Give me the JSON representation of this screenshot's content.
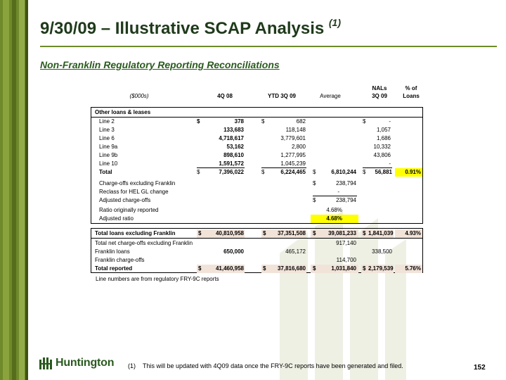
{
  "header": {
    "title": "9/30/09 – Illustrative SCAP Analysis",
    "title_sup": "(1)",
    "subtitle": "Non-Franklin Regulatory Reporting Reconciliations"
  },
  "columns": {
    "units": "($000s)",
    "c1": "4Q 08",
    "c2": "YTD 3Q 09",
    "c3": "Average",
    "c4_line1": "NALs",
    "c4_line2": "3Q 09",
    "c5_line1": "% of",
    "c5_line2": "Loans"
  },
  "section1": {
    "heading": "Other loans & leases",
    "rows": [
      {
        "label": "Line 2",
        "q4": "378",
        "ytd": "682",
        "nal": "-",
        "q4_dollar": "$",
        "ytd_dollar": "$",
        "nal_dollar": "$"
      },
      {
        "label": "Line 3",
        "q4": "133,683",
        "ytd": "118,148",
        "nal": "1,057"
      },
      {
        "label": "Line 6",
        "q4": "4,718,617",
        "ytd": "3,779,601",
        "nal": "1,686"
      },
      {
        "label": "Line 9a",
        "q4": "53,162",
        "ytd": "2,800",
        "nal": "10,332"
      },
      {
        "label": "Line 9b",
        "q4": "898,610",
        "ytd": "1,277,995",
        "nal": "43,806"
      },
      {
        "label": "Line 10",
        "q4": "1,591,572",
        "ytd": "1,045,239",
        "nal": "-"
      }
    ],
    "total": {
      "label": "Total",
      "q4": "7,396,022",
      "ytd": "6,224,465",
      "avg": "6,810,244",
      "nal": "56,881",
      "pct": "0.91%",
      "dollar": "$"
    },
    "chargeoffs": [
      {
        "label": "Charge-offs excluding Franklin",
        "avg": "238,794",
        "dollar": "$"
      },
      {
        "label": "Reclass for HEL GL change",
        "avg": "-"
      },
      {
        "label": "Adjusted charge-offs",
        "avg": "238,794",
        "dollar": "$"
      }
    ],
    "ratios": [
      {
        "label": "Ratio originally reported",
        "avg": "4.68%"
      },
      {
        "label": "Adjusted ratio",
        "avg": "4.68%"
      }
    ]
  },
  "section2": {
    "total_excl": {
      "label": "Total loans excluding Franklin",
      "q4": "40,810,958",
      "ytd": "37,351,508",
      "avg": "39,081,233",
      "nal": "1,841,039",
      "pct": "4.93%",
      "dollar": "$"
    },
    "net_chargeoffs": {
      "label": "Total net charge-offs excluding Franklin",
      "avg": "917,140"
    },
    "franklin_loans": {
      "label": "Franklin loans",
      "q4": "650,000",
      "ytd": "465,172",
      "nal": "338,500"
    },
    "franklin_chargeoffs": {
      "label": "Franklin charge-offs",
      "avg": "114,700"
    },
    "total_reported": {
      "label": "Total reported",
      "q4": "41,460,958",
      "ytd": "37,816,680",
      "avg": "1,031,840",
      "nal": "2,179,539",
      "pct": "5.76%",
      "dollar": "$"
    }
  },
  "note": "Line numbers are from regulatory FRY-9C reports",
  "footer": {
    "logo_text": "Huntington",
    "footnote_num": "(1)",
    "footnote_text": "This will be updated with 4Q09 data once the FRY-9C reports have been generated and filed.",
    "page_number": "152"
  },
  "colors": {
    "brand_green": "#2a5a1e",
    "band_green": "#6e8a2a",
    "highlight": "#ffff00",
    "tint": "#f2e3d9"
  }
}
